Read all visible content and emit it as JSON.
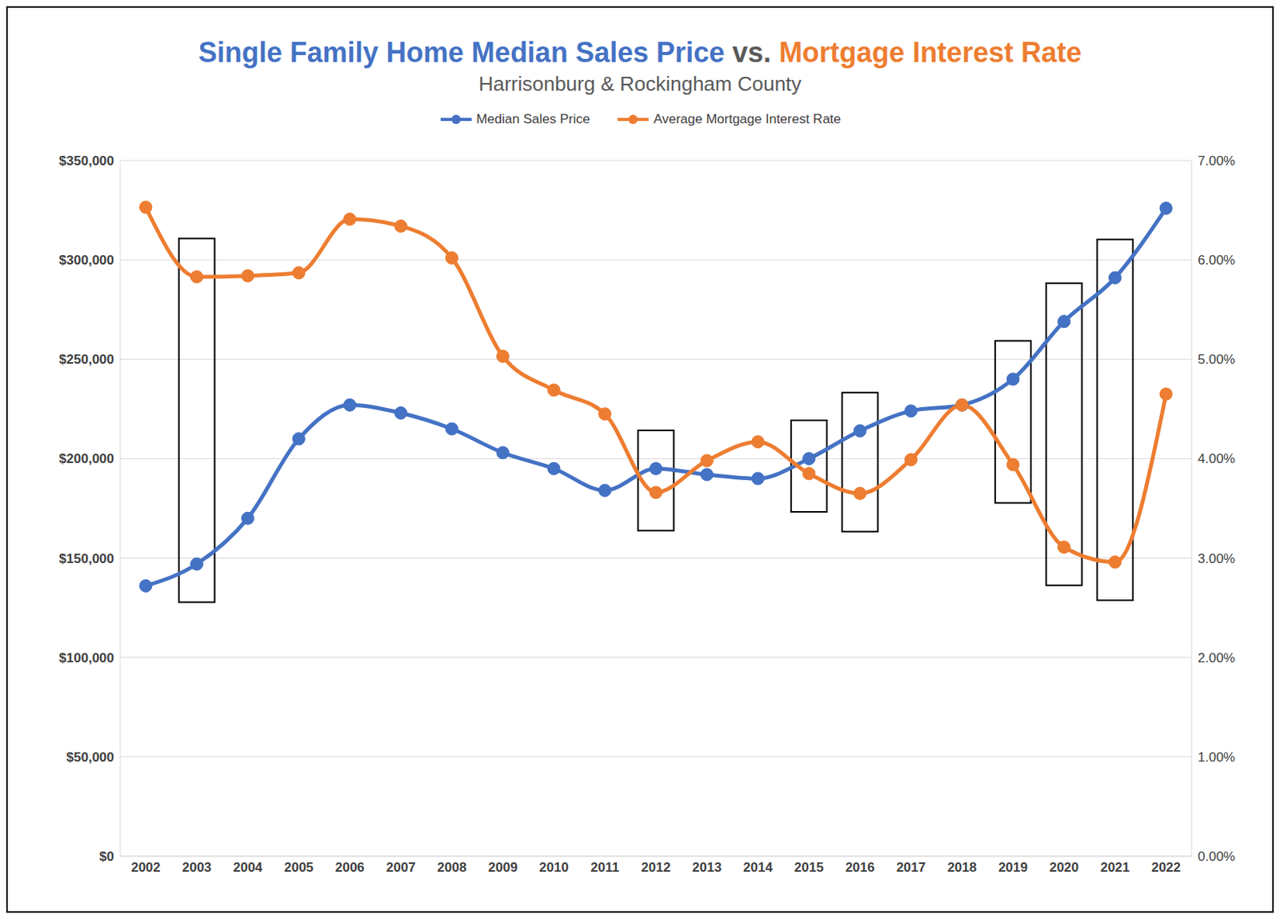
{
  "chart_data": {
    "type": "line",
    "title": [
      "Single Family Home Median Sales Price",
      "vs.",
      "Mortgage Interest Rate"
    ],
    "subtitle": "Harrisonburg & Rockingham County",
    "x": [
      2002,
      2003,
      2004,
      2005,
      2006,
      2007,
      2008,
      2009,
      2010,
      2011,
      2012,
      2013,
      2014,
      2015,
      2016,
      2017,
      2018,
      2019,
      2020,
      2021,
      2022
    ],
    "xlim": [
      2001.5,
      2022.5
    ],
    "xticks": [
      2002,
      2003,
      2004,
      2005,
      2006,
      2007,
      2008,
      2009,
      2010,
      2011,
      2012,
      2013,
      2014,
      2015,
      2016,
      2017,
      2018,
      2019,
      2020,
      2021,
      2022
    ],
    "ylim": [
      0,
      350000
    ],
    "yticks": [
      {
        "value": 0,
        "label": "$0"
      },
      {
        "value": 50000,
        "label": "$50,000"
      },
      {
        "value": 100000,
        "label": "$100,000"
      },
      {
        "value": 150000,
        "label": "$150,000"
      },
      {
        "value": 200000,
        "label": "$200,000"
      },
      {
        "value": 250000,
        "label": "$250,000"
      },
      {
        "value": 300000,
        "label": "$300,000"
      },
      {
        "value": 350000,
        "label": "$350,000"
      }
    ],
    "y2lim": [
      0,
      7
    ],
    "y2ticks": [
      {
        "value": 0,
        "label": "0.00%"
      },
      {
        "value": 1,
        "label": "1.00%"
      },
      {
        "value": 2,
        "label": "2.00%"
      },
      {
        "value": 3,
        "label": "3.00%"
      },
      {
        "value": 4,
        "label": "4.00%"
      },
      {
        "value": 5,
        "label": "5.00%"
      },
      {
        "value": 6,
        "label": "6.00%"
      },
      {
        "value": 7,
        "label": "7.00%"
      }
    ],
    "grid": true,
    "legend": "top",
    "series": [
      {
        "name": "Median Sales Price",
        "color": "#4472c4",
        "marker": "circle",
        "line_style": "solid",
        "values": [
          136000,
          147000,
          170000,
          210000,
          227000,
          223000,
          215000,
          203000,
          195000,
          184000,
          195000,
          192000,
          190000,
          200000,
          214000,
          224000,
          227000,
          240000,
          269000,
          291000,
          326000
        ]
      },
      {
        "name": "Average Mortgage Interest Rate",
        "color": "#ed7d31",
        "axis": "y2",
        "marker": "circle",
        "line_style": "solid",
        "values": [
          6.53,
          5.83,
          5.84,
          5.87,
          6.41,
          6.34,
          6.02,
          5.03,
          4.69,
          4.45,
          3.66,
          3.98,
          4.17,
          3.85,
          3.65,
          3.99,
          4.54,
          3.94,
          3.11,
          2.96,
          4.65
        ]
      }
    ]
  }
}
